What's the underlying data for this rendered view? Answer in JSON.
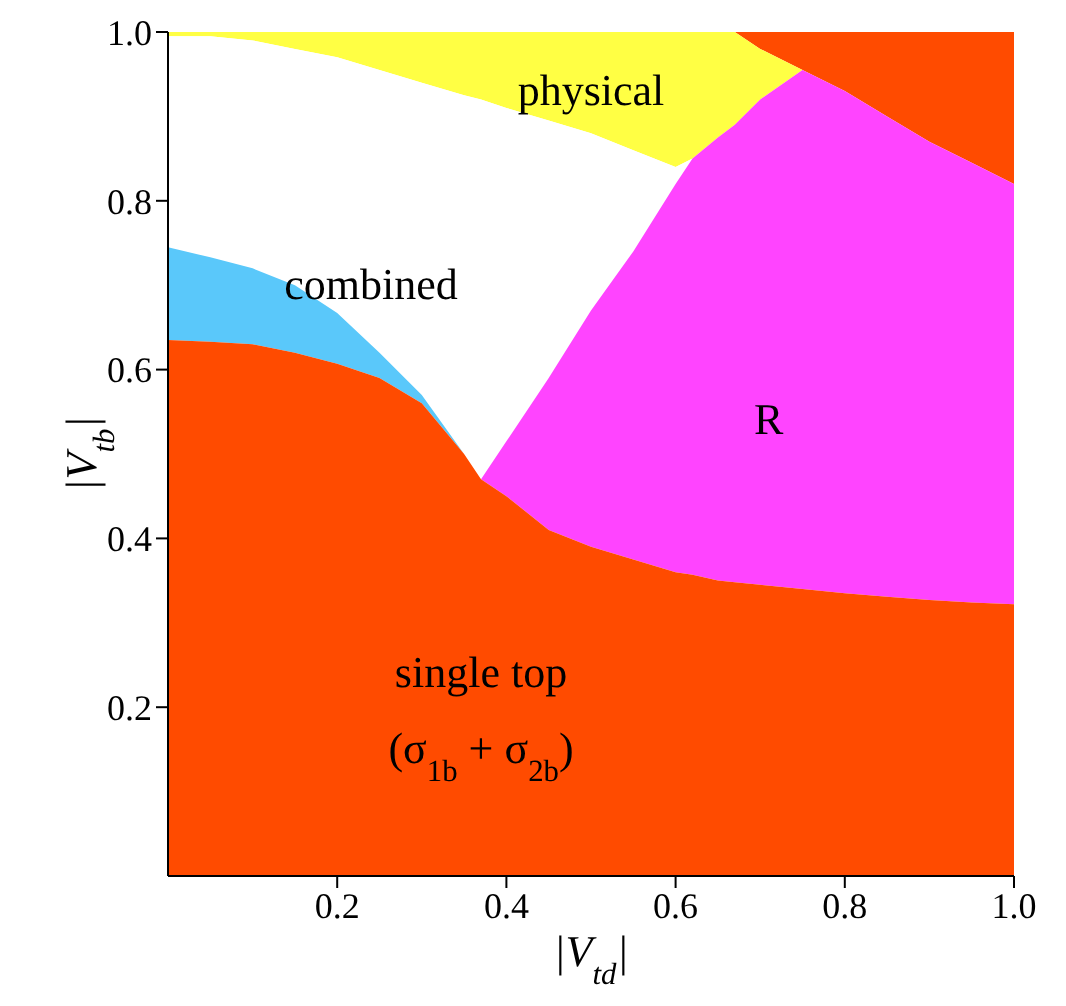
{
  "chart_data": {
    "type": "area",
    "stacked": true,
    "xlabel": "|V$_{td}$|",
    "ylabel": "|V$_{tb}$|",
    "x": [
      0,
      0.05,
      0.1,
      0.15,
      0.2,
      0.25,
      0.3,
      0.35,
      0.37,
      0.4,
      0.45,
      0.5,
      0.55,
      0.6,
      0.62,
      0.65,
      0.67,
      0.7,
      0.75,
      0.8,
      0.85,
      0.9,
      0.95,
      1
    ],
    "series": [
      {
        "color": "#ff4b00",
        "values": [
          0.635,
          0.633,
          0.63,
          0.62,
          0.607,
          0.59,
          0.56,
          0.5,
          0.47,
          0.45,
          0.41,
          0.39,
          0.375,
          0.36,
          0.357,
          0.35,
          0.348,
          0.345,
          0.34,
          0.335,
          0.331,
          0.327,
          0.324,
          0.322
        ]
      },
      {
        "color": "#5ac8fa",
        "values": [
          0.11,
          0.1,
          0.09,
          0.08,
          0.06,
          0.03,
          0.01,
          0,
          0,
          0,
          0,
          0,
          0,
          0,
          0,
          0,
          0,
          0,
          0,
          0,
          0,
          0,
          0,
          0
        ]
      },
      {
        "color": "#ff44ff",
        "values": [
          0,
          0,
          0,
          0,
          0,
          0,
          0,
          0,
          0,
          0.065,
          0.18,
          0.28,
          0.365,
          0.46,
          0.493,
          0.525,
          0.542,
          0.575,
          0.615,
          0.595,
          0.569,
          0.543,
          0.521,
          0.498
        ]
      },
      {
        "color": "#ffffff",
        "values": [
          0.25,
          0.262,
          0.27,
          0.28,
          0.303,
          0.335,
          0.37,
          0.425,
          0.45,
          0.395,
          0.305,
          0.21,
          0.12,
          0.02,
          0,
          0,
          0,
          0,
          0,
          0,
          0,
          0,
          0,
          0
        ]
      },
      {
        "color": "#ffff44",
        "values": [
          0.005,
          0.005,
          0.01,
          0.02,
          0.03,
          0.045,
          0.06,
          0.075,
          0.08,
          0.09,
          0.105,
          0.12,
          0.14,
          0.16,
          0.15,
          0.125,
          0.11,
          0.06,
          0,
          0,
          0,
          0,
          0,
          0
        ]
      },
      {
        "color": "#ff4b00",
        "values": [
          null,
          null,
          null,
          null,
          null,
          null,
          null,
          null,
          null,
          null,
          null,
          null,
          null,
          null,
          null,
          null,
          0,
          0.02,
          0.045,
          0.07,
          0.1,
          0.13,
          0.155,
          0.18
        ]
      }
    ],
    "xlim": [
      0,
      1
    ],
    "ylim": [
      0,
      1
    ],
    "xticks": [
      0.2,
      0.4,
      0.6,
      0.8,
      {
        "value": 1,
        "label": "1.0"
      }
    ],
    "yticks": [
      0.2,
      0.4,
      0.6,
      0.8,
      {
        "value": 1,
        "label": "1.0"
      }
    ],
    "annotations": [
      "physical",
      "combined",
      "R",
      "single top",
      "(σ$_{1b}$ + σ$_{2b}$)"
    ]
  }
}
